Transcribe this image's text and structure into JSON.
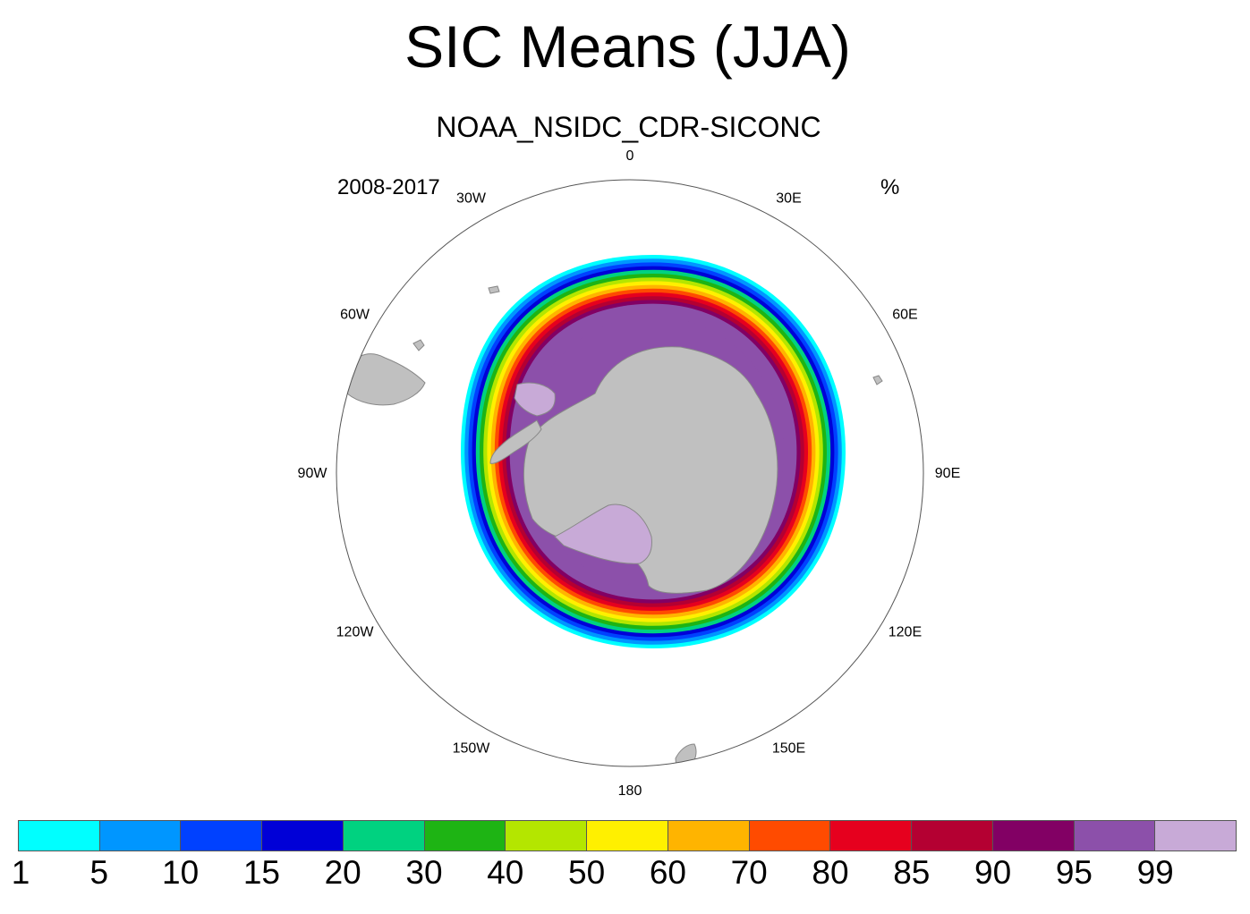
{
  "title": "SIC Means (JJA)",
  "subtitle": "NOAA_NSIDC_CDR-SICONC",
  "period": "2008-2017",
  "units": "%",
  "longitude_labels": [
    "0",
    "30E",
    "60E",
    "90E",
    "120E",
    "150E",
    "180",
    "150W",
    "120W",
    "90W",
    "60W",
    "30W"
  ],
  "legend": {
    "colors": [
      "#00ffff",
      "#0096ff",
      "#0041ff",
      "#0000d7",
      "#00d280",
      "#1eb414",
      "#b4e600",
      "#fff000",
      "#ffb400",
      "#ff4b00",
      "#e6001e",
      "#b40032",
      "#820064",
      "#8c50aa",
      "#c8aad7"
    ],
    "labels": [
      "1",
      "5",
      "10",
      "15",
      "20",
      "30",
      "40",
      "50",
      "60",
      "70",
      "80",
      "85",
      "90",
      "95",
      "99"
    ]
  },
  "colors": {
    "land": "#c0c0c0",
    "ocean": "#ffffff"
  }
}
